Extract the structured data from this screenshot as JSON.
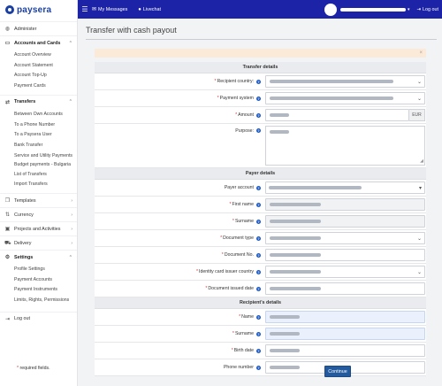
{
  "brand": {
    "name": "paysera"
  },
  "topbar": {
    "messages": "My Messages",
    "livechat": "Livechat",
    "logout": "Log out"
  },
  "sidebar": {
    "administer": "Administer",
    "accounts": {
      "label": "Accounts and Cards",
      "items": [
        "Account Overview",
        "Account Statement",
        "Account Top-Up",
        "Payment Cards"
      ]
    },
    "transfers": {
      "label": "Transfers",
      "items": [
        "Between Own Accounts",
        "To a Phone Number",
        "To a Paysera User",
        "Bank Transfer",
        "Service and Utility Payments",
        "Budget payments - Bulgaria",
        "List of Transfers",
        "Import Transfers"
      ]
    },
    "templates": "Templates",
    "currency": "Currency",
    "projects": "Projects and Activities",
    "delivery": "Delivery",
    "settings": {
      "label": "Settings",
      "items": [
        "Profile Settings",
        "Payment Accounts",
        "Payment Instruments",
        "Limits, Rights, Permissions"
      ]
    },
    "logout": "Log out"
  },
  "page": {
    "title": "Transfer with cash payout",
    "alert_close": "×"
  },
  "form": {
    "transfer_details": {
      "header": "Transfer details",
      "recipient_country": "Recipient country:",
      "payment_system": "Payment system",
      "amount": "Amount",
      "currency": "EUR",
      "purpose": "Purpose:"
    },
    "payer_details": {
      "header": "Payer details",
      "payer_account": "Payer account",
      "first_name": "First name",
      "surname": "Surname",
      "document_type": "Document type",
      "document_no": "Document No.",
      "issuer_country": "Identity card issuer country",
      "issued_date": "Document issued date"
    },
    "recipient_details": {
      "header": "Recipient's details",
      "name": "Name",
      "surname": "Surname",
      "birth_date": "Birth date",
      "phone": "Phone number"
    },
    "required_note": "required fields.",
    "continue": "Continue"
  }
}
